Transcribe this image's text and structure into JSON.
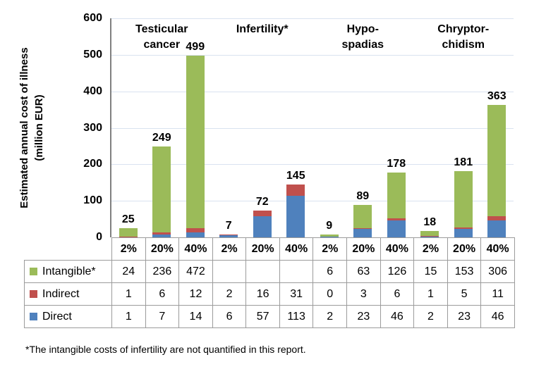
{
  "figure": {
    "ylabel_line1": "Estimated annual cost of illness",
    "ylabel_line2": "(million EUR)",
    "footnote": "*The intangible costs of infertility are not quantified in this report."
  },
  "colors": {
    "direct_blue": "#4F81BD",
    "indirect_red": "#C0504D",
    "intangible_green": "#9BBB59",
    "gridline": "#D9E2F0",
    "axis_gray": "#808080",
    "table_border_gray": "#9b9b9b"
  },
  "chart_data": {
    "type": "bar",
    "stacked": true,
    "ylabel": "Estimated annual cost of illness (million EUR)",
    "ylim": [
      0,
      600
    ],
    "yticks": [
      0,
      100,
      200,
      300,
      400,
      500,
      600
    ],
    "grid": true,
    "legend_position": "table-left-column",
    "groups": [
      "Testicular cancer",
      "Infertility*",
      "Hypospadias",
      "Chryptorchidism"
    ],
    "group_label_lines": [
      "Testicular\ncancer",
      "Infertility*",
      "Hypo-\nspadias",
      "Chryptor-\nchidism"
    ],
    "categories": [
      "2%",
      "20%",
      "40%",
      "2%",
      "20%",
      "40%",
      "2%",
      "20%",
      "40%",
      "2%",
      "20%",
      "40%"
    ],
    "bar_total_labels": [
      "25",
      "249",
      "499",
      "7",
      "72",
      "145",
      "9",
      "89",
      "178",
      "18",
      "181",
      "363"
    ],
    "series": [
      {
        "name": "Direct",
        "color": "#4F81BD",
        "values": [
          1,
          7,
          14,
          6,
          57,
          113,
          2,
          23,
          46,
          2,
          23,
          46
        ]
      },
      {
        "name": "Indirect",
        "color": "#C0504D",
        "values": [
          1,
          6,
          12,
          2,
          16,
          31,
          0,
          3,
          6,
          1,
          5,
          11
        ]
      },
      {
        "name": "Intangible*",
        "color": "#9BBB59",
        "values": [
          24,
          236,
          472,
          null,
          null,
          null,
          6,
          63,
          126,
          15,
          153,
          306
        ]
      }
    ],
    "table": {
      "rows": [
        {
          "label": "Intangible*",
          "color": "#9BBB59",
          "values": [
            "24",
            "236",
            "472",
            "",
            "",
            "",
            "6",
            "63",
            "126",
            "15",
            "153",
            "306"
          ]
        },
        {
          "label": "Indirect",
          "color": "#C0504D",
          "values": [
            "1",
            "6",
            "12",
            "2",
            "16",
            "31",
            "0",
            "3",
            "6",
            "1",
            "5",
            "11"
          ]
        },
        {
          "label": "Direct",
          "color": "#4F81BD",
          "values": [
            "1",
            "7",
            "14",
            "6",
            "57",
            "113",
            "2",
            "23",
            "46",
            "2",
            "23",
            "46"
          ]
        }
      ]
    }
  }
}
